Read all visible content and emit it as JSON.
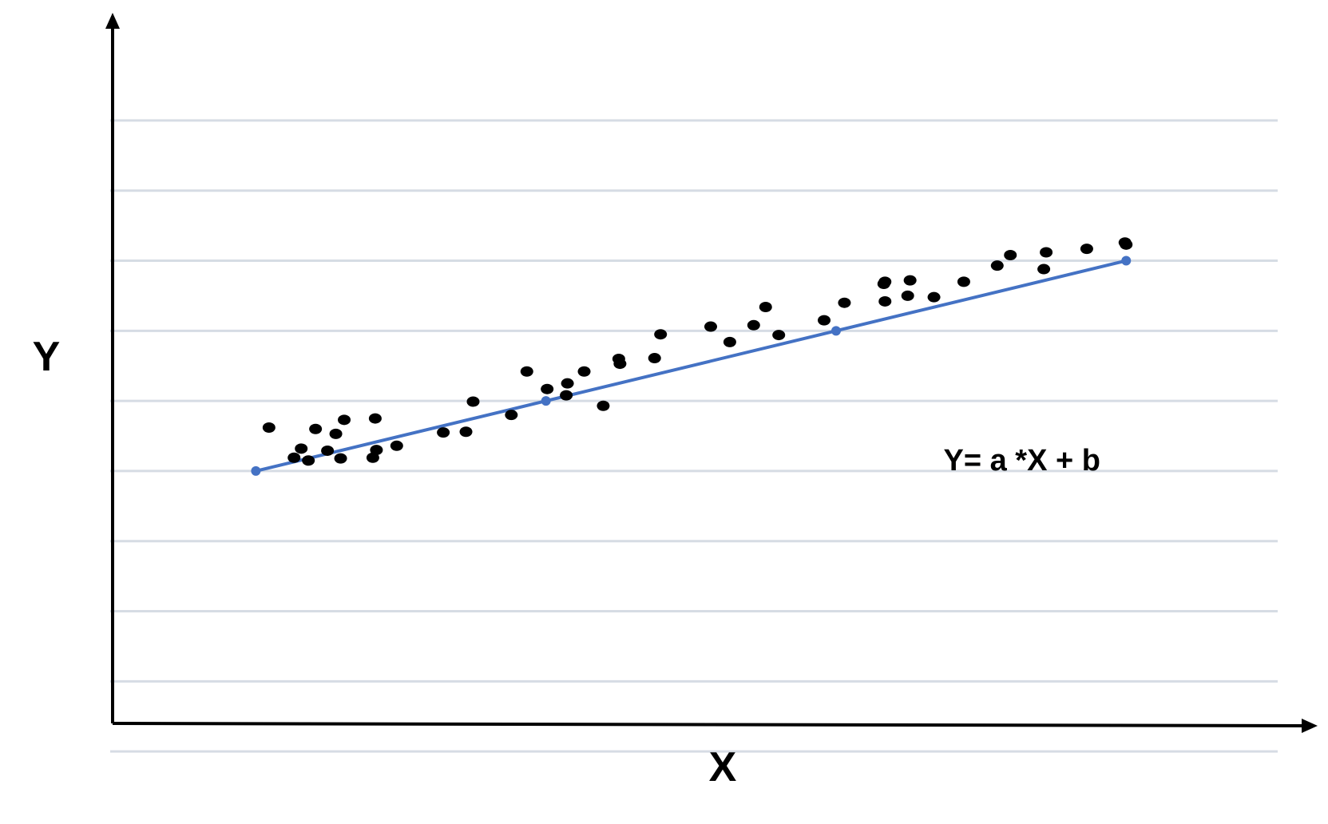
{
  "chart_data": {
    "type": "scatter",
    "title": "",
    "xlabel": "X",
    "ylabel": "Y",
    "xlim": [
      0,
      100
    ],
    "ylim": [
      0,
      100
    ],
    "grid": true,
    "grid_lines_y": [
      -4,
      6,
      16,
      26,
      36,
      46,
      56,
      66,
      76,
      86
    ],
    "series": [
      {
        "kind": "scatter",
        "points": [
          [
            13.1,
            42.2
          ],
          [
            15.2,
            37.9
          ],
          [
            15.8,
            39.2
          ],
          [
            16.4,
            37.5
          ],
          [
            17.0,
            42.0
          ],
          [
            18.0,
            38.9
          ],
          [
            18.7,
            41.3
          ],
          [
            19.1,
            37.8
          ],
          [
            19.4,
            43.3
          ],
          [
            21.8,
            37.9
          ],
          [
            22.0,
            43.5
          ],
          [
            22.1,
            39.0
          ],
          [
            23.8,
            39.6
          ],
          [
            27.7,
            41.5
          ],
          [
            29.6,
            41.6
          ],
          [
            30.2,
            45.9
          ],
          [
            33.4,
            44.0
          ],
          [
            34.7,
            50.2
          ],
          [
            36.4,
            47.7
          ],
          [
            38.0,
            46.8
          ],
          [
            38.1,
            48.5
          ],
          [
            39.5,
            50.2
          ],
          [
            41.1,
            45.3
          ],
          [
            42.4,
            52.0
          ],
          [
            42.5,
            51.3
          ],
          [
            45.4,
            52.1
          ],
          [
            45.9,
            55.5
          ],
          [
            50.1,
            56.6
          ],
          [
            51.7,
            54.4
          ],
          [
            53.7,
            56.8
          ],
          [
            54.7,
            59.4
          ],
          [
            55.8,
            55.4
          ],
          [
            59.6,
            57.5
          ],
          [
            61.3,
            60.0
          ],
          [
            64.6,
            62.7
          ],
          [
            64.7,
            60.2
          ],
          [
            64.7,
            63.0
          ],
          [
            66.6,
            61.0
          ],
          [
            66.8,
            63.2
          ],
          [
            68.8,
            60.8
          ],
          [
            71.3,
            63.0
          ],
          [
            74.1,
            65.3
          ],
          [
            75.2,
            66.8
          ],
          [
            78.0,
            64.8
          ],
          [
            78.2,
            67.2
          ],
          [
            81.6,
            67.7
          ],
          [
            84.8,
            68.6
          ],
          [
            84.9,
            68.3
          ]
        ]
      },
      {
        "kind": "line",
        "x": [
          12.0,
          84.9
        ],
        "y": [
          36.0,
          66.0
        ],
        "color": "#4472c4"
      }
    ],
    "annotations": [
      {
        "text": "Y= a *X + b",
        "x": 70.0,
        "y": 37.5
      }
    ],
    "colors": {
      "point": "#000000",
      "line": "#4472c4",
      "grid": "#d6dce4",
      "axis": "#000000"
    }
  }
}
